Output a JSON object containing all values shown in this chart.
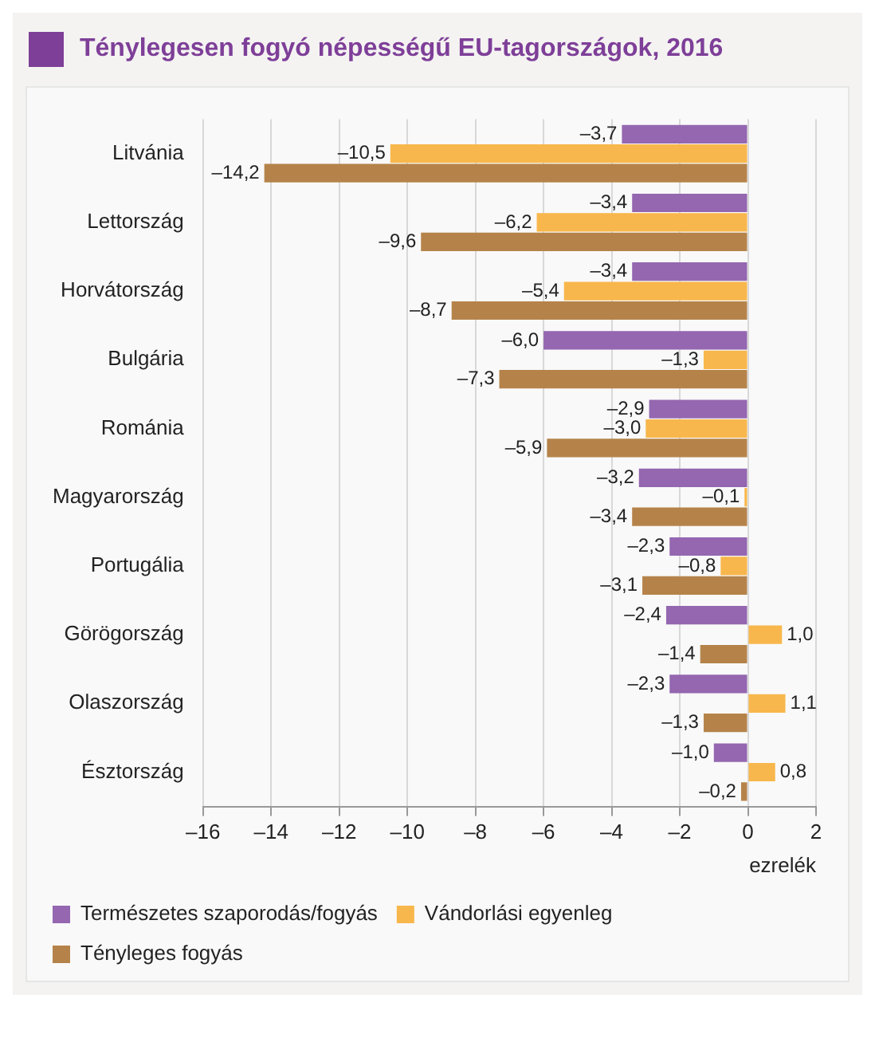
{
  "chart_data": {
    "type": "bar",
    "orientation": "horizontal",
    "title": "Ténylegesen fogyó népességű EU-tagországok, 2016",
    "xlabel": "ezrelék",
    "categories": [
      "Litvánia",
      "Lettország",
      "Horvátország",
      "Bulgária",
      "Románia",
      "Magyarország",
      "Portugália",
      "Görögország",
      "Olaszország",
      "Észtország"
    ],
    "series": [
      {
        "name": "Természetes szaporodás/fogyás",
        "color": "#9467b0",
        "values": [
          -3.7,
          -3.4,
          -3.4,
          -6.0,
          -2.9,
          -3.2,
          -2.3,
          -2.4,
          -2.3,
          -1.0
        ],
        "value_labels": [
          "–3,7",
          "–3,4",
          "–3,4",
          "–6,0",
          "–2,9",
          "–3,2",
          "–2,3",
          "–2,4",
          "–2,3",
          "–1,0"
        ]
      },
      {
        "name": "Vándorlási egyenleg",
        "color": "#f8b74c",
        "values": [
          -10.5,
          -6.2,
          -5.4,
          -1.3,
          -3.0,
          -0.1,
          -0.8,
          1.0,
          1.1,
          0.8
        ],
        "value_labels": [
          "–10,5",
          "–6,2",
          "–5,4",
          "–1,3",
          "–3,0",
          "–0,1",
          "–0,8",
          "1,0",
          "1,1",
          "0,8"
        ]
      },
      {
        "name": "Tényleges fogyás",
        "color": "#b5834a",
        "values": [
          -14.2,
          -9.6,
          -8.7,
          -7.3,
          -5.9,
          -3.4,
          -3.1,
          -1.4,
          -1.3,
          -0.2
        ],
        "value_labels": [
          "–14,2",
          "–9,6",
          "–8,7",
          "–7,3",
          "–5,9",
          "–3,4",
          "–3,1",
          "–1,4",
          "–1,3",
          "–0,2"
        ]
      }
    ],
    "xlim": [
      -16,
      2
    ],
    "xticks": [
      {
        "value": -16,
        "label": "–16"
      },
      {
        "value": -14,
        "label": "–14"
      },
      {
        "value": -12,
        "label": "–12"
      },
      {
        "value": -10,
        "label": "–10"
      },
      {
        "value": -8,
        "label": "–8"
      },
      {
        "value": -6,
        "label": "–6"
      },
      {
        "value": -4,
        "label": "–4"
      },
      {
        "value": -2,
        "label": "–2"
      },
      0,
      2
    ],
    "grid": "x",
    "legend": "bottom"
  }
}
